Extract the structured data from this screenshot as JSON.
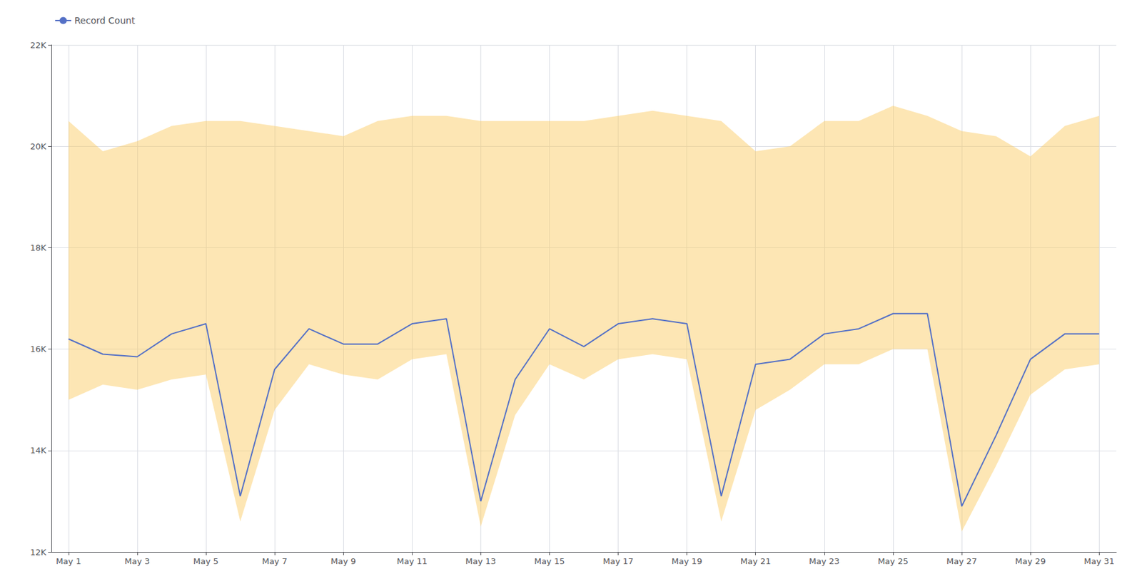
{
  "chart_data": {
    "type": "line",
    "x": [
      0,
      1,
      2,
      3,
      4,
      5,
      6,
      7,
      8,
      9,
      10,
      11,
      12,
      13,
      14,
      15,
      16,
      17,
      18,
      19,
      20,
      21,
      22,
      23,
      24,
      25,
      26,
      27,
      28,
      29,
      30
    ],
    "series": [
      {
        "name": "Record Count",
        "values": [
          16200,
          15900,
          15850,
          16300,
          16500,
          13100,
          15600,
          16400,
          16100,
          16100,
          16500,
          16600,
          13000,
          15400,
          16400,
          16050,
          16500,
          16600,
          16500,
          13100,
          15700,
          15800,
          16300,
          16400,
          16700,
          16700,
          12900,
          14300,
          15800,
          16300,
          16300
        ],
        "upper": [
          20500,
          19900,
          20100,
          20400,
          20500,
          20500,
          20400,
          20300,
          20200,
          20500,
          20600,
          20600,
          20500,
          20500,
          20500,
          20500,
          20600,
          20700,
          20600,
          20500,
          19900,
          20000,
          20500,
          20500,
          20800,
          20600,
          20300,
          20200,
          19800,
          20400,
          20600
        ],
        "lower": [
          15000,
          15300,
          15200,
          15400,
          15500,
          12600,
          14800,
          15700,
          15500,
          15400,
          15800,
          15900,
          12500,
          14700,
          15700,
          15400,
          15800,
          15900,
          15800,
          12600,
          14800,
          15200,
          15700,
          15700,
          16000,
          16000,
          12400,
          13700,
          15100,
          15600,
          15700
        ]
      }
    ],
    "xlim": [
      -0.5,
      30.5
    ],
    "xticks": [
      {
        "value": 0,
        "label": "May 1"
      },
      {
        "value": 2,
        "label": "May 3"
      },
      {
        "value": 4,
        "label": "May 5"
      },
      {
        "value": 6,
        "label": "May 7"
      },
      {
        "value": 8,
        "label": "May 9"
      },
      {
        "value": 10,
        "label": "May 11"
      },
      {
        "value": 12,
        "label": "May 13"
      },
      {
        "value": 14,
        "label": "May 15"
      },
      {
        "value": 16,
        "label": "May 17"
      },
      {
        "value": 18,
        "label": "May 19"
      },
      {
        "value": 20,
        "label": "May 21"
      },
      {
        "value": 22,
        "label": "May 23"
      },
      {
        "value": 24,
        "label": "May 25"
      },
      {
        "value": 26,
        "label": "May 27"
      },
      {
        "value": 28,
        "label": "May 29"
      },
      {
        "value": 30,
        "label": "May 31"
      }
    ],
    "ylim": [
      12000,
      22000
    ],
    "yticks": [
      {
        "value": 12000,
        "label": "12K"
      },
      {
        "value": 14000,
        "label": "14K"
      },
      {
        "value": 16000,
        "label": "16K"
      },
      {
        "value": 18000,
        "label": "18K"
      },
      {
        "value": 20000,
        "label": "20K"
      },
      {
        "value": 22000,
        "label": "22K"
      }
    ],
    "grid": true,
    "legend": "upper left"
  }
}
